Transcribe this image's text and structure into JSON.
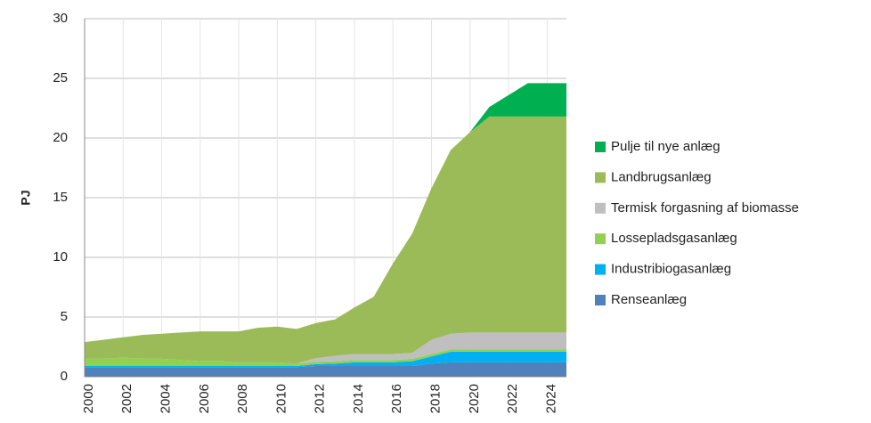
{
  "chart_data": {
    "type": "stacked_area",
    "y_label": "PJ",
    "x": [
      2000,
      2001,
      2002,
      2003,
      2004,
      2005,
      2006,
      2007,
      2008,
      2009,
      2010,
      2011,
      2012,
      2013,
      2014,
      2015,
      2016,
      2017,
      2018,
      2019,
      2020,
      2021,
      2022,
      2023,
      2024,
      2025
    ],
    "xlim": [
      2000,
      2025
    ],
    "xticks": [
      2000,
      2002,
      2004,
      2006,
      2008,
      2010,
      2012,
      2014,
      2016,
      2018,
      2020,
      2022,
      2024
    ],
    "ylim": [
      0,
      30
    ],
    "yticks": [
      0,
      5,
      10,
      15,
      20,
      25,
      30
    ],
    "grid": true,
    "legend": "right",
    "series": [
      {
        "name": "Renseanlæg",
        "color": "#4f81bd",
        "values": [
          0.8,
          0.8,
          0.8,
          0.8,
          0.8,
          0.8,
          0.8,
          0.8,
          0.8,
          0.8,
          0.8,
          0.8,
          0.9,
          0.9,
          0.9,
          0.9,
          0.9,
          0.9,
          1.1,
          1.2,
          1.2,
          1.2,
          1.2,
          1.2,
          1.2,
          1.2
        ]
      },
      {
        "name": "Industribiogasanlæg",
        "color": "#00b0f0",
        "values": [
          0.1,
          0.1,
          0.1,
          0.1,
          0.1,
          0.1,
          0.1,
          0.1,
          0.1,
          0.1,
          0.1,
          0.1,
          0.15,
          0.2,
          0.3,
          0.3,
          0.3,
          0.4,
          0.6,
          0.9,
          0.9,
          0.9,
          0.9,
          0.9,
          0.9,
          0.9
        ]
      },
      {
        "name": "Lossepladsgasanlæg",
        "color": "#92d050",
        "values": [
          0.6,
          0.6,
          0.7,
          0.6,
          0.6,
          0.5,
          0.4,
          0.4,
          0.3,
          0.3,
          0.3,
          0.2,
          0.2,
          0.2,
          0.2,
          0.2,
          0.2,
          0.2,
          0.2,
          0.2,
          0.2,
          0.2,
          0.2,
          0.2,
          0.2,
          0.2
        ]
      },
      {
        "name": "Termisk forgasning af biomasse",
        "color": "#bfbfbf",
        "values": [
          0,
          0,
          0,
          0,
          0,
          0,
          0,
          0,
          0,
          0,
          0,
          0,
          0.3,
          0.45,
          0.5,
          0.5,
          0.5,
          0.5,
          1.2,
          1.3,
          1.4,
          1.4,
          1.4,
          1.4,
          1.4,
          1.4
        ]
      },
      {
        "name": "Landbrugsanlæg",
        "color": "#9bbb59",
        "values": [
          1.4,
          1.6,
          1.7,
          2.0,
          2.1,
          2.3,
          2.5,
          2.5,
          2.6,
          2.9,
          3.0,
          2.9,
          2.95,
          3.05,
          3.9,
          4.8,
          7.6,
          10.0,
          12.7,
          15.4,
          16.8,
          18.1,
          18.1,
          18.1,
          18.1,
          18.1
        ]
      },
      {
        "name": "Pulje til nye anlæg",
        "color": "#00b050",
        "values": [
          0,
          0,
          0,
          0,
          0,
          0,
          0,
          0,
          0,
          0,
          0,
          0,
          0,
          0,
          0,
          0,
          0,
          0,
          0,
          0,
          0,
          0.8,
          1.8,
          2.8,
          2.8,
          2.8
        ]
      }
    ]
  }
}
